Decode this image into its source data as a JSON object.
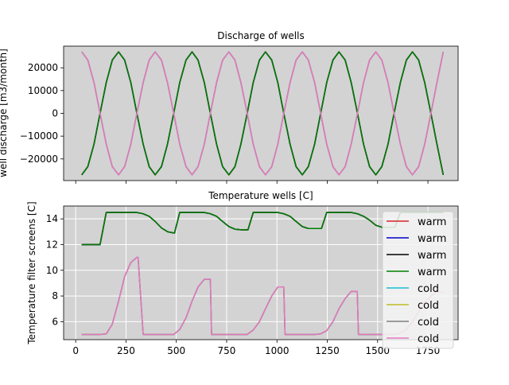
{
  "chart_data": [
    {
      "type": "line",
      "title": "Discharge of wells",
      "xlabel": "",
      "ylabel": "well discharge [m3/month]",
      "xlim": [
        -60,
        1900
      ],
      "ylim": [
        -29500,
        29500
      ],
      "yticks": [
        -20000,
        -10000,
        0,
        10000,
        20000
      ],
      "ytick_labels": [
        "−20000",
        "−10000",
        "0",
        "10000",
        "20000"
      ],
      "xticks": [
        0,
        250,
        500,
        750,
        1000,
        1250,
        1500,
        1750
      ],
      "xtick_labels": [],
      "grid": false,
      "legend": "none",
      "background": "#d3d3d3",
      "x": [
        30,
        60,
        91,
        121,
        152,
        182,
        213,
        243,
        274,
        304,
        335,
        365,
        395,
        426,
        456,
        487,
        517,
        548,
        578,
        608,
        639,
        669,
        700,
        730,
        761,
        791,
        821,
        852,
        882,
        913,
        943,
        974,
        1004,
        1034,
        1065,
        1095,
        1126,
        1156,
        1187,
        1217,
        1247,
        1278,
        1308,
        1339,
        1369,
        1400,
        1430,
        1460,
        1491,
        1521,
        1552,
        1582,
        1613,
        1643,
        1673,
        1704,
        1734,
        1765,
        1795,
        1826
      ],
      "series": [
        {
          "color": "#d62728",
          "values": [
            -27000,
            -23383,
            -13500,
            0,
            13500,
            23383,
            27000,
            23383,
            13500,
            0,
            -13500,
            -23383,
            -27000,
            -23383,
            -13500,
            0,
            13500,
            23383,
            27000,
            23383,
            13500,
            0,
            -13500,
            -23383,
            -27000,
            -23383,
            -13500,
            0,
            13500,
            23383,
            27000,
            23383,
            13500,
            0,
            -13500,
            -23383,
            -27000,
            -23383,
            -13500,
            0,
            13500,
            23383,
            27000,
            23383,
            13500,
            0,
            -13500,
            -23383,
            -27000,
            -23383,
            -13500,
            0,
            13500,
            23383,
            27000,
            23383,
            13500,
            0,
            -13500,
            -27000
          ]
        },
        {
          "color": "#0000cc",
          "values": [
            -27000,
            -23383,
            -13500,
            0,
            13500,
            23383,
            27000,
            23383,
            13500,
            0,
            -13500,
            -23383,
            -27000,
            -23383,
            -13500,
            0,
            13500,
            23383,
            27000,
            23383,
            13500,
            0,
            -13500,
            -23383,
            -27000,
            -23383,
            -13500,
            0,
            13500,
            23383,
            27000,
            23383,
            13500,
            0,
            -13500,
            -23383,
            -27000,
            -23383,
            -13500,
            0,
            13500,
            23383,
            27000,
            23383,
            13500,
            0,
            -13500,
            -23383,
            -27000,
            -23383,
            -13500,
            0,
            13500,
            23383,
            27000,
            23383,
            13500,
            0,
            -13500,
            -27000
          ]
        },
        {
          "color": "#000000",
          "values": [
            -27000,
            -23383,
            -13500,
            0,
            13500,
            23383,
            27000,
            23383,
            13500,
            0,
            -13500,
            -23383,
            -27000,
            -23383,
            -13500,
            0,
            13500,
            23383,
            27000,
            23383,
            13500,
            0,
            -13500,
            -23383,
            -27000,
            -23383,
            -13500,
            0,
            13500,
            23383,
            27000,
            23383,
            13500,
            0,
            -13500,
            -23383,
            -27000,
            -23383,
            -13500,
            0,
            13500,
            23383,
            27000,
            23383,
            13500,
            0,
            -13500,
            -23383,
            -27000,
            -23383,
            -13500,
            0,
            13500,
            23383,
            27000,
            23383,
            13500,
            0,
            -13500,
            -27000
          ]
        },
        {
          "color": "#008000",
          "values": [
            -27000,
            -23383,
            -13500,
            0,
            13500,
            23383,
            27000,
            23383,
            13500,
            0,
            -13500,
            -23383,
            -27000,
            -23383,
            -13500,
            0,
            13500,
            23383,
            27000,
            23383,
            13500,
            0,
            -13500,
            -23383,
            -27000,
            -23383,
            -13500,
            0,
            13500,
            23383,
            27000,
            23383,
            13500,
            0,
            -13500,
            -23383,
            -27000,
            -23383,
            -13500,
            0,
            13500,
            23383,
            27000,
            23383,
            13500,
            0,
            -13500,
            -23383,
            -27000,
            -23383,
            -13500,
            0,
            13500,
            23383,
            27000,
            23383,
            13500,
            0,
            -13500,
            -27000
          ]
        },
        {
          "color": "#17becf",
          "values": [
            27000,
            23383,
            13500,
            0,
            -13500,
            -23383,
            -27000,
            -23383,
            -13500,
            0,
            13500,
            23383,
            27000,
            23383,
            13500,
            0,
            -13500,
            -23383,
            -27000,
            -23383,
            -13500,
            0,
            13500,
            23383,
            27000,
            23383,
            13500,
            0,
            -13500,
            -23383,
            -27000,
            -23383,
            -13500,
            0,
            13500,
            23383,
            27000,
            23383,
            13500,
            0,
            -13500,
            -23383,
            -27000,
            -23383,
            -13500,
            0,
            13500,
            23383,
            27000,
            23383,
            13500,
            0,
            -13500,
            -23383,
            -27000,
            -23383,
            -13500,
            0,
            13500,
            27000
          ]
        },
        {
          "color": "#bcbd22",
          "values": [
            27000,
            23383,
            13500,
            0,
            -13500,
            -23383,
            -27000,
            -23383,
            -13500,
            0,
            13500,
            23383,
            27000,
            23383,
            13500,
            0,
            -13500,
            -23383,
            -27000,
            -23383,
            -13500,
            0,
            13500,
            23383,
            27000,
            23383,
            13500,
            0,
            -13500,
            -23383,
            -27000,
            -23383,
            -13500,
            0,
            13500,
            23383,
            27000,
            23383,
            13500,
            0,
            -13500,
            -23383,
            -27000,
            -23383,
            -13500,
            0,
            13500,
            23383,
            27000,
            23383,
            13500,
            0,
            -13500,
            -23383,
            -27000,
            -23383,
            -13500,
            0,
            13500,
            27000
          ]
        },
        {
          "color": "#7f7f7f",
          "values": [
            27000,
            23383,
            13500,
            0,
            -13500,
            -23383,
            -27000,
            -23383,
            -13500,
            0,
            13500,
            23383,
            27000,
            23383,
            13500,
            0,
            -13500,
            -23383,
            -27000,
            -23383,
            -13500,
            0,
            13500,
            23383,
            27000,
            23383,
            13500,
            0,
            -13500,
            -23383,
            -27000,
            -23383,
            -13500,
            0,
            13500,
            23383,
            27000,
            23383,
            13500,
            0,
            -13500,
            -23383,
            -27000,
            -23383,
            -13500,
            0,
            13500,
            23383,
            27000,
            23383,
            13500,
            0,
            -13500,
            -23383,
            -27000,
            -23383,
            -13500,
            0,
            13500,
            27000
          ]
        },
        {
          "color": "#e377c2",
          "values": [
            27000,
            23383,
            13500,
            0,
            -13500,
            -23383,
            -27000,
            -23383,
            -13500,
            0,
            13500,
            23383,
            27000,
            23383,
            13500,
            0,
            -13500,
            -23383,
            -27000,
            -23383,
            -13500,
            0,
            13500,
            23383,
            27000,
            23383,
            13500,
            0,
            -13500,
            -23383,
            -27000,
            -23383,
            -13500,
            0,
            13500,
            23383,
            27000,
            23383,
            13500,
            0,
            -13500,
            -23383,
            -27000,
            -23383,
            -13500,
            0,
            13500,
            23383,
            27000,
            23383,
            13500,
            0,
            -13500,
            -23383,
            -27000,
            -23383,
            -13500,
            0,
            13500,
            27000
          ]
        }
      ]
    },
    {
      "type": "line",
      "title": "Temperature  wells [C]",
      "xlabel": "",
      "ylabel": "Temperature filter screens [C]",
      "xlim": [
        -60,
        1900
      ],
      "ylim": [
        4.6,
        15.0
      ],
      "yticks": [
        6,
        8,
        10,
        12,
        14
      ],
      "ytick_labels": [
        "6",
        "8",
        "10",
        "12",
        "14"
      ],
      "xticks": [
        0,
        250,
        500,
        750,
        1000,
        1250,
        1500,
        1750
      ],
      "xtick_labels": [
        "0",
        "250",
        "500",
        "750",
        "1000",
        "1250",
        "1500",
        "1750"
      ],
      "grid": true,
      "legend": "right",
      "background": "#d3d3d3",
      "series": [
        {
          "name": "warm",
          "color": "#d62728",
          "group": "warm"
        },
        {
          "name": "warm",
          "color": "#0000cc",
          "group": "warm"
        },
        {
          "name": "warm",
          "color": "#000000",
          "group": "warm"
        },
        {
          "name": "warm",
          "color": "#008000",
          "group": "warm"
        },
        {
          "name": "cold",
          "color": "#17becf",
          "group": "cold"
        },
        {
          "name": "cold",
          "color": "#bcbd22",
          "group": "cold"
        },
        {
          "name": "cold",
          "color": "#7f7f7f",
          "group": "cold"
        },
        {
          "name": "cold",
          "color": "#e377c2",
          "group": "cold"
        }
      ],
      "warm_curve": {
        "x": [
          30,
          60,
          91,
          121,
          152,
          182,
          213,
          243,
          274,
          304,
          335,
          365,
          395,
          426,
          456,
          487,
          491,
          517,
          548,
          578,
          608,
          639,
          669,
          700,
          730,
          761,
          791,
          821,
          852,
          856,
          882,
          913,
          943,
          974,
          1004,
          1034,
          1065,
          1095,
          1126,
          1156,
          1187,
          1217,
          1221,
          1247,
          1278,
          1308,
          1339,
          1369,
          1400,
          1430,
          1460,
          1491,
          1521,
          1552,
          1582,
          1586,
          1613,
          1643,
          1673,
          1704,
          1734,
          1765,
          1795,
          1826
        ],
        "values": [
          12.0,
          12.0,
          12.0,
          12.0,
          14.5,
          14.5,
          14.5,
          14.5,
          14.5,
          14.5,
          14.4,
          14.2,
          13.8,
          13.3,
          13.0,
          12.9,
          12.9,
          14.5,
          14.5,
          14.5,
          14.5,
          14.5,
          14.4,
          14.2,
          13.8,
          13.4,
          13.2,
          13.15,
          13.15,
          13.15,
          14.5,
          14.5,
          14.5,
          14.5,
          14.5,
          14.4,
          14.2,
          13.8,
          13.4,
          13.25,
          13.25,
          13.25,
          13.25,
          14.5,
          14.5,
          14.5,
          14.5,
          14.5,
          14.4,
          14.2,
          13.9,
          13.5,
          13.35,
          13.35,
          13.35,
          13.35,
          14.5,
          14.5,
          14.5,
          14.5,
          14.5,
          14.5,
          14.5,
          14.5
        ]
      },
      "cold_curve": {
        "x": [
          30,
          60,
          91,
          121,
          152,
          182,
          213,
          243,
          274,
          304,
          310,
          335,
          365,
          395,
          426,
          456,
          487,
          517,
          548,
          578,
          608,
          639,
          669,
          675,
          700,
          730,
          761,
          791,
          821,
          852,
          882,
          913,
          943,
          974,
          1004,
          1034,
          1040,
          1065,
          1095,
          1126,
          1156,
          1187,
          1217,
          1247,
          1278,
          1308,
          1339,
          1369,
          1399,
          1405,
          1430,
          1460,
          1491,
          1521,
          1552,
          1582,
          1613,
          1643,
          1673,
          1704,
          1734,
          1765,
          1795,
          1826
        ],
        "values": [
          5.0,
          5.0,
          5.0,
          5.0,
          5.05,
          5.8,
          7.6,
          9.5,
          10.6,
          11.0,
          11.0,
          5.0,
          5.0,
          5.0,
          5.0,
          5.0,
          5.0,
          5.4,
          6.3,
          7.6,
          8.7,
          9.3,
          9.3,
          5.0,
          5.0,
          5.0,
          5.0,
          5.0,
          5.0,
          5.0,
          5.35,
          6.0,
          7.0,
          8.0,
          8.7,
          8.7,
          5.0,
          5.0,
          5.0,
          5.0,
          5.0,
          5.0,
          5.05,
          5.3,
          6.0,
          7.0,
          7.8,
          8.35,
          8.35,
          5.0,
          5.0,
          5.0,
          5.0,
          5.0,
          5.0,
          5.0,
          5.1,
          5.4,
          6.0,
          6.8,
          7.5,
          8.0,
          8.3,
          8.3
        ]
      }
    }
  ]
}
